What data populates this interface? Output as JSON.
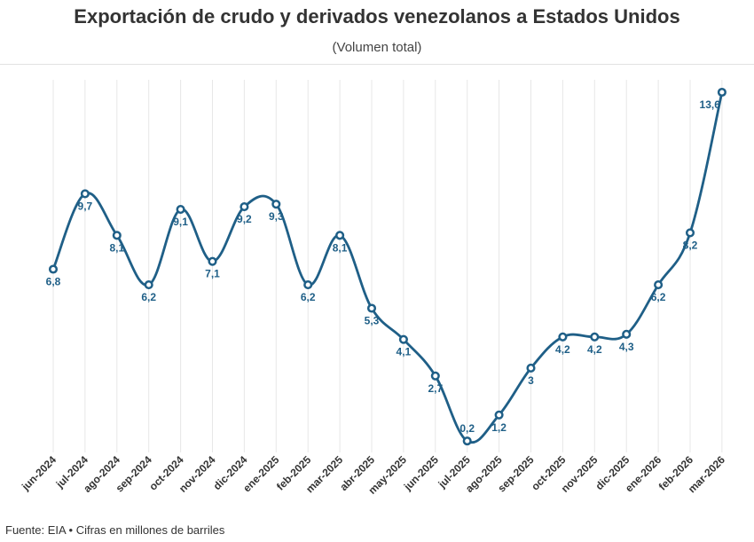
{
  "chart_data": {
    "type": "line",
    "title": "Exportación de crudo y derivados venezolanos a Estados Unidos",
    "subtitle": "(Volumen total)",
    "xlabel": "",
    "ylabel": "",
    "categories": [
      "jun-2024",
      "jul-2024",
      "ago-2024",
      "sep-2024",
      "oct-2024",
      "nov-2024",
      "dic-2024",
      "ene-2025",
      "feb-2025",
      "mar-2025",
      "abr-2025",
      "may-2025",
      "jun-2025",
      "jul-2025",
      "ago-2025",
      "sep-2025",
      "oct-2025",
      "nov-2025",
      "dic-2025",
      "ene-2026",
      "feb-2026",
      "mar-2026"
    ],
    "series": [
      {
        "values": [
          6.8,
          9.7,
          8.1,
          6.2,
          9.1,
          7.1,
          9.2,
          9.3,
          6.2,
          8.1,
          5.3,
          4.1,
          2.7,
          0.2,
          1.2,
          3,
          4.2,
          4.2,
          4.3,
          6.2,
          8.2,
          13.6
        ]
      }
    ],
    "data_labels": [
      "6,8",
      "9,7",
      "8,1",
      "6,2",
      "9,1",
      "7,1",
      "9,2",
      "9,3",
      "6,2",
      "8,1",
      "5,3",
      "4,1",
      "2,7",
      "0,2",
      "1,2",
      "3",
      "4,2",
      "4,2",
      "4,3",
      "6,2",
      "8,2",
      "13,6"
    ],
    "ylim": [
      0,
      13.6
    ],
    "grid": "vertical",
    "legend": "none",
    "line_color": "#1f5f87",
    "footer": "Fuente: EIA • Cifras en millones de barriles"
  }
}
